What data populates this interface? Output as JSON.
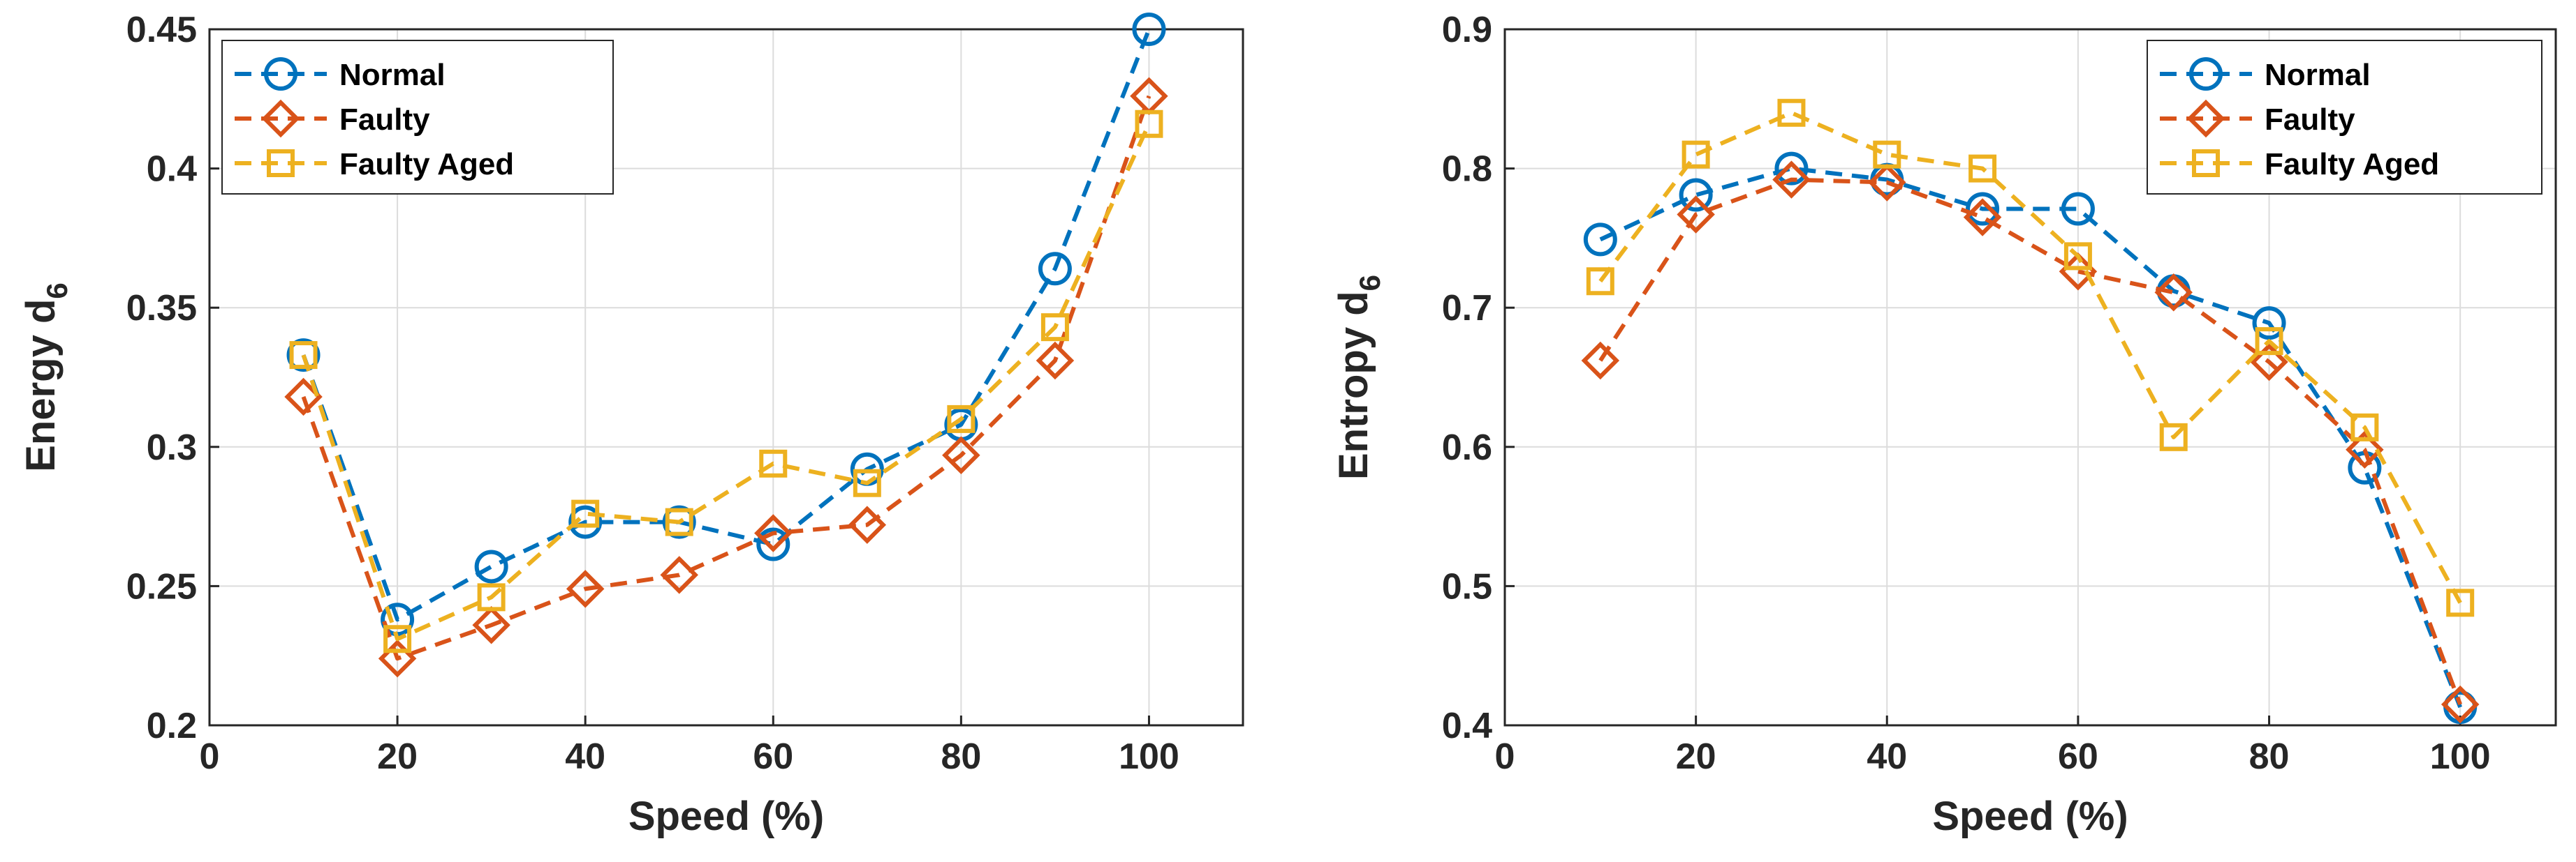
{
  "figure": {
    "type": "line-chart-pair"
  },
  "colors": {
    "normal": "#0072BD",
    "faulty": "#D95319",
    "faulty_aged": "#EDB120",
    "grid": "#dcdcdc",
    "axis": "#262626"
  },
  "chart_data": [
    {
      "type": "line",
      "title": "",
      "xlabel": "Speed (%)",
      "ylabel_main": "Energy d",
      "ylabel_sub": "6",
      "xlim": [
        0,
        110
      ],
      "ylim": [
        0.2,
        0.45
      ],
      "xticks": [
        0,
        20,
        40,
        60,
        80,
        100
      ],
      "xtick_labels": [
        "0",
        "20",
        "40",
        "60",
        "80",
        "100"
      ],
      "yticks": [
        0.2,
        0.25,
        0.3,
        0.35,
        0.4,
        0.45
      ],
      "ytick_labels": [
        "0.2",
        "0.25",
        "0.3",
        "0.35",
        "0.4",
        "0.45"
      ],
      "grid": true,
      "legend_position": "top-left",
      "x": [
        10,
        20,
        30,
        40,
        50,
        60,
        70,
        80,
        90,
        100
      ],
      "series": [
        {
          "name": "Normal",
          "key": "normal",
          "marker": "circle",
          "values": [
            0.333,
            0.238,
            0.257,
            0.273,
            0.273,
            0.265,
            0.292,
            0.308,
            0.364,
            0.45
          ]
        },
        {
          "name": "Faulty",
          "key": "faulty",
          "marker": "diamond",
          "values": [
            0.318,
            0.224,
            0.236,
            0.249,
            0.254,
            0.269,
            0.272,
            0.297,
            0.331,
            0.426
          ]
        },
        {
          "name": "Faulty Aged",
          "key": "faulty_aged",
          "marker": "square",
          "values": [
            0.333,
            0.231,
            0.246,
            0.276,
            0.273,
            0.294,
            0.287,
            0.31,
            0.343,
            0.416
          ]
        }
      ]
    },
    {
      "type": "line",
      "title": "",
      "xlabel": "Speed (%)",
      "ylabel_main": "Entropy d",
      "ylabel_sub": "6",
      "xlim": [
        0,
        110
      ],
      "ylim": [
        0.4,
        0.9
      ],
      "xticks": [
        0,
        20,
        40,
        60,
        80,
        100
      ],
      "xtick_labels": [
        "0",
        "20",
        "40",
        "60",
        "80",
        "100"
      ],
      "yticks": [
        0.4,
        0.5,
        0.6,
        0.7,
        0.8,
        0.9
      ],
      "ytick_labels": [
        "0.4",
        "0.5",
        "0.6",
        "0.7",
        "0.8",
        "0.9"
      ],
      "grid": true,
      "legend_position": "top-right",
      "x": [
        10,
        20,
        30,
        40,
        50,
        60,
        70,
        80,
        90,
        100
      ],
      "series": [
        {
          "name": "Normal",
          "key": "normal",
          "marker": "circle",
          "values": [
            0.749,
            0.781,
            0.8,
            0.792,
            0.771,
            0.771,
            0.712,
            0.689,
            0.585,
            0.413
          ]
        },
        {
          "name": "Faulty",
          "key": "faulty",
          "marker": "diamond",
          "values": [
            0.662,
            0.767,
            0.792,
            0.79,
            0.765,
            0.726,
            0.711,
            0.661,
            0.598,
            0.415
          ]
        },
        {
          "name": "Faulty Aged",
          "key": "faulty_aged",
          "marker": "square",
          "values": [
            0.719,
            0.81,
            0.84,
            0.81,
            0.8,
            0.737,
            0.607,
            0.676,
            0.614,
            0.488
          ]
        }
      ]
    }
  ]
}
